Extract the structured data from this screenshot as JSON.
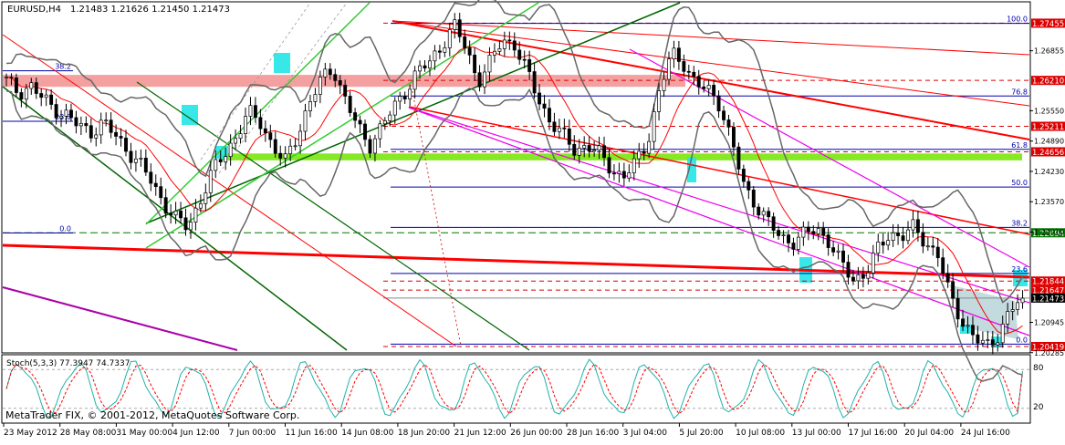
{
  "header": {
    "symbol": "EURUSD,H4",
    "ohlc": "1.21483 1.21626 1.21450 1.21473"
  },
  "stoch": {
    "label": "Stoch(5,3,3) 77.3947 74.7337",
    "k_period": 5,
    "d_period": 3,
    "slowing": 3,
    "k_value": 77.3947,
    "d_value": 74.7337,
    "levels": [
      "80",
      "20"
    ],
    "ylim": [
      0,
      100
    ]
  },
  "copyright": "MetaTrader FIX, © 2001-2012, MetaQuotes Software Corp.",
  "chart_data": {
    "type": "candlestick",
    "symbol": "EURUSD",
    "timeframe": "H4",
    "ylim": [
      1.203,
      1.279
    ],
    "x_ticks": [
      "23 May 2012",
      "28 May 08:00",
      "31 May 00:00",
      "4 Jun 12:00",
      "7 Jun 00:00",
      "11 Jun 16:00",
      "14 Jun 08:00",
      "18 Jun 20:00",
      "21 Jun 12:00",
      "26 Jun 00:00",
      "28 Jun 16:00",
      "3 Jul 04:00",
      "5 Jul 20:00",
      "10 Jul 08:00",
      "13 Jul 00:00",
      "17 Jul 16:00",
      "20 Jul 04:00",
      "24 Jul 16:00"
    ],
    "y_ticks": [
      "1.26855",
      "1.25550",
      "1.24890",
      "1.24230",
      "1.23570",
      "1.22910",
      "1.20945",
      "1.20285"
    ],
    "price_tags": [
      {
        "value": "1.27455",
        "price": 1.27455,
        "color": "#dd0000"
      },
      {
        "value": "1.26210",
        "price": 1.2621,
        "color": "#dd0000"
      },
      {
        "value": "1.25211",
        "price": 1.25211,
        "color": "#dd0000"
      },
      {
        "value": "1.24656",
        "price": 1.24656,
        "color": "#dd0000"
      },
      {
        "value": "1.22894",
        "price": 1.22894,
        "color": "#007700"
      },
      {
        "value": "1.21844",
        "price": 1.21844,
        "color": "#dd0000"
      },
      {
        "value": "1.21647",
        "price": 1.21647,
        "color": "#dd0000"
      },
      {
        "value": "1.21473",
        "price": 1.21473,
        "color": "#000000"
      },
      {
        "value": "1.20419",
        "price": 1.20419,
        "color": "#dd0000"
      }
    ],
    "fibo_levels": [
      {
        "label": "100.0",
        "price": 1.2745
      },
      {
        "label": "76.8",
        "price": 1.2587
      },
      {
        "label": "61.8",
        "price": 1.2471
      },
      {
        "label": "50.0",
        "price": 1.2389
      },
      {
        "label": "38.2",
        "price": 1.2301
      },
      {
        "label": "23.6",
        "price": 1.2201
      },
      {
        "label": "0.0",
        "price": 1.2047
      }
    ],
    "left_fibo_labels": [
      {
        "label": "38.2",
        "price": 1.2642
      },
      {
        "label": "23.6",
        "price": 1.2532
      },
      {
        "label": "0.0",
        "price": 1.2289
      }
    ],
    "anchor_prices": [
      1.262,
      1.2595,
      1.261,
      1.258,
      1.256,
      1.2545,
      1.252,
      1.251,
      1.253,
      1.25,
      1.247,
      1.244,
      1.24,
      1.2355,
      1.232,
      1.23,
      1.236,
      1.242,
      1.246,
      1.25,
      1.255,
      1.253,
      1.248,
      1.244,
      1.25,
      1.257,
      1.262,
      1.265,
      1.258,
      1.252,
      1.248,
      1.252,
      1.256,
      1.26,
      1.264,
      1.266,
      1.27,
      1.274,
      1.269,
      1.262,
      1.266,
      1.271,
      1.27,
      1.264,
      1.258,
      1.253,
      1.25,
      1.247,
      1.248,
      1.246,
      1.243,
      1.241,
      1.244,
      1.249,
      1.26,
      1.268,
      1.266,
      1.261,
      1.26,
      1.257,
      1.248,
      1.239,
      1.235,
      1.231,
      1.228,
      1.227,
      1.2285,
      1.23,
      1.227,
      1.222,
      1.219,
      1.22,
      1.225,
      1.229,
      1.228,
      1.23,
      1.227,
      1.224,
      1.215,
      1.21,
      1.206,
      1.204,
      1.207,
      1.212,
      1.2147
    ]
  }
}
